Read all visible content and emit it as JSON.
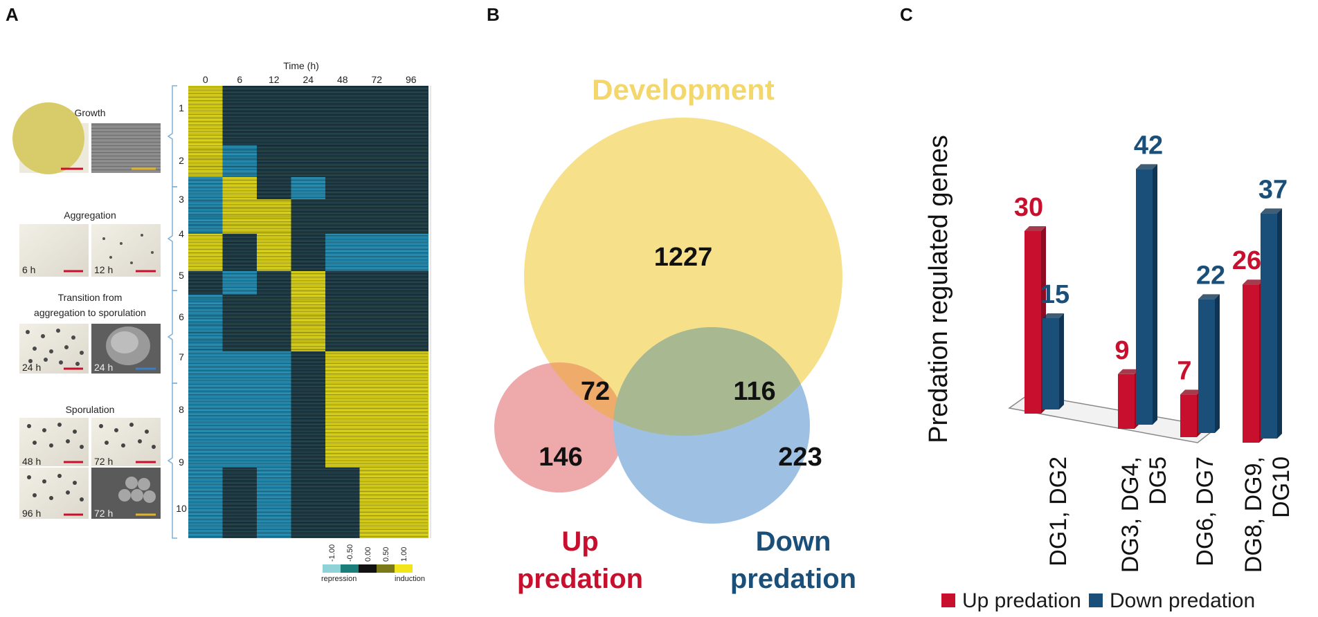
{
  "panels": {
    "a": "A",
    "b": "B",
    "c": "C"
  },
  "panel_a": {
    "time_axis_label": "Time (h)",
    "time_points": [
      "0",
      "6",
      "12",
      "24",
      "48",
      "72",
      "96"
    ],
    "stages": [
      {
        "title": "Growth",
        "photo_labels": [
          "",
          ""
        ]
      },
      {
        "title": "Aggregation",
        "photo_labels": [
          "6 h",
          "12 h"
        ]
      },
      {
        "title": "Transition from",
        "title2": "aggregation to sporulation",
        "photo_labels": [
          "24 h",
          "24 h"
        ]
      },
      {
        "title": "Sporulation",
        "photo_labels": [
          "48 h",
          "72 h",
          "96 h",
          "72 h"
        ]
      }
    ],
    "cluster_labels": [
      "1",
      "2",
      "3",
      "4",
      "5",
      "6",
      "7",
      "8",
      "9",
      "10"
    ],
    "scale_values": [
      "-1.00",
      "-0.50",
      "0.00",
      "0.50",
      "1.00"
    ],
    "scale_colors": [
      "#8fd3d9",
      "#1b7e7a",
      "#111111",
      "#7a7a1a",
      "#f2e61a"
    ],
    "repression_label": "repression",
    "induction_label": "induction",
    "heatmap_pattern": [
      [
        "Y",
        "D",
        "D",
        "D",
        "D",
        "D",
        "D"
      ],
      [
        "Y",
        "C",
        "D",
        "D",
        "D",
        "D",
        "D"
      ],
      [
        "C",
        "Y",
        "D",
        "C",
        "D",
        "D",
        "D"
      ],
      [
        "C",
        "Y",
        "Y",
        "D",
        "D",
        "D",
        "D"
      ],
      [
        "Y",
        "D",
        "Y",
        "D",
        "C",
        "C",
        "C"
      ],
      [
        "D",
        "C",
        "D",
        "Y",
        "D",
        "D",
        "D"
      ],
      [
        "C",
        "D",
        "D",
        "Y",
        "D",
        "D",
        "D"
      ],
      [
        "C",
        "C",
        "C",
        "D",
        "Y",
        "Y",
        "Y"
      ],
      [
        "C",
        "C",
        "C",
        "D",
        "Y",
        "Y",
        "Y"
      ],
      [
        "C",
        "D",
        "C",
        "D",
        "D",
        "Y",
        "Y"
      ]
    ]
  },
  "venn": {
    "development_label": "Development",
    "up_label_line1": "Up",
    "up_label_line2": "predation",
    "down_label_line1": "Down",
    "down_label_line2": "predation",
    "counts": {
      "development_only": "1227",
      "up_dev": "72",
      "up_only": "146",
      "down_dev": "116",
      "down_only": "223"
    },
    "colors": {
      "development": "#f7e08a",
      "up": "#eeaaaa",
      "down": "#9ec1e3",
      "up_dev": "#eeab6a",
      "down_dev": "#a8b891"
    }
  },
  "chart_data": {
    "type": "bar",
    "ylabel": "Predation regulated genes",
    "categories": [
      "DG1, DG2",
      "DG3, DG4, DG5",
      "DG6, DG7",
      "DG8, DG9, DG10"
    ],
    "category_lines": [
      [
        "DG1, DG2"
      ],
      [
        "DG3, DG4,",
        "DG5"
      ],
      [
        "DG6, DG7"
      ],
      [
        "DG8, DG9,",
        "DG10"
      ]
    ],
    "series": [
      {
        "name": "Up predation",
        "values": [
          30,
          9,
          7,
          26
        ],
        "color": "#c8102e"
      },
      {
        "name": "Down predation",
        "values": [
          15,
          42,
          22,
          37
        ],
        "color": "#1a4f7a"
      }
    ],
    "ylim": [
      0,
      45
    ]
  }
}
